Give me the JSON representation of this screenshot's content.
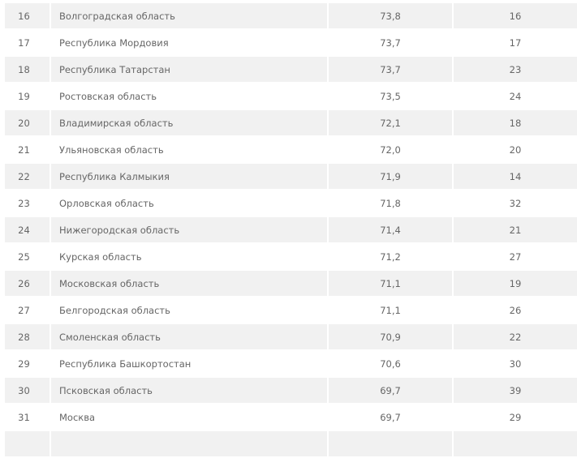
{
  "table": {
    "rows": [
      {
        "rank": "16",
        "region": "Волгоградская область",
        "score": "73,8",
        "prev": "16"
      },
      {
        "rank": "17",
        "region": "Республика Мордовия",
        "score": "73,7",
        "prev": "17"
      },
      {
        "rank": "18",
        "region": "Республика Татарстан",
        "score": "73,7",
        "prev": "23"
      },
      {
        "rank": "19",
        "region": "Ростовская область",
        "score": "73,5",
        "prev": "24"
      },
      {
        "rank": "20",
        "region": "Владимирская область",
        "score": "72,1",
        "prev": "18"
      },
      {
        "rank": "21",
        "region": "Ульяновская область",
        "score": "72,0",
        "prev": "20"
      },
      {
        "rank": "22",
        "region": "Республика Калмыкия",
        "score": "71,9",
        "prev": "14"
      },
      {
        "rank": "23",
        "region": "Орловская область",
        "score": "71,8",
        "prev": "32"
      },
      {
        "rank": "24",
        "region": "Нижегородская область",
        "score": "71,4",
        "prev": "21"
      },
      {
        "rank": "25",
        "region": "Курская область",
        "score": "71,2",
        "prev": "27"
      },
      {
        "rank": "26",
        "region": "Московская область",
        "score": "71,1",
        "prev": "19"
      },
      {
        "rank": "27",
        "region": "Белгородская область",
        "score": "71,1",
        "prev": "26"
      },
      {
        "rank": "28",
        "region": "Смоленская область",
        "score": "70,9",
        "prev": "22"
      },
      {
        "rank": "29",
        "region": "Республика Башкортостан",
        "score": "70,6",
        "prev": "30"
      },
      {
        "rank": "30",
        "region": "Псковская область",
        "score": "69,7",
        "prev": "39"
      },
      {
        "rank": "31",
        "region": "Москва",
        "score": "69,7",
        "prev": "29"
      },
      {
        "rank": "",
        "region": "",
        "score": "",
        "prev": ""
      }
    ]
  },
  "colors": {
    "row_shade": "#f1f1f1",
    "text": "#666666"
  }
}
